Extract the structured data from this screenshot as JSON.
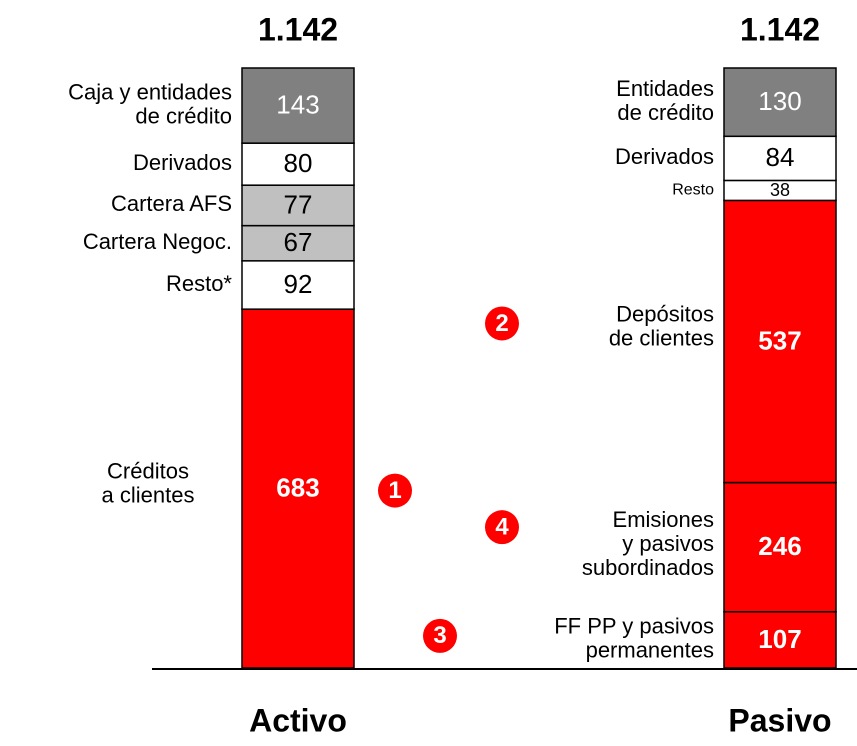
{
  "chart_data": {
    "type": "stacked_bar",
    "bars": [
      {
        "name": "Activo",
        "total": 1142,
        "total_label": "1.142",
        "segments": [
          {
            "label": [
              "Créditos",
              "a clientes"
            ],
            "value": 683,
            "color": "#ff0000",
            "marker": "1"
          },
          {
            "label": [
              "Resto*"
            ],
            "value": 92,
            "color": "#ffffff"
          },
          {
            "label": [
              "Cartera Negoc."
            ],
            "value": 67,
            "color": "#c0c0c0"
          },
          {
            "label": [
              "Cartera AFS"
            ],
            "value": 77,
            "color": "#c0c0c0"
          },
          {
            "label": [
              "Derivados"
            ],
            "value": 80,
            "color": "#ffffff"
          },
          {
            "label": [
              "Caja y entidades",
              "de crédito"
            ],
            "value": 143,
            "color": "#808080"
          }
        ]
      },
      {
        "name": "Pasivo",
        "total": 1142,
        "total_label": "1.142",
        "segments": [
          {
            "label": [
              "FF PP y pasivos",
              "permanentes"
            ],
            "value": 107,
            "color": "#ff0000",
            "marker": "3"
          },
          {
            "label": [
              "Emisiones",
              "y pasivos",
              "subordinados"
            ],
            "value": 246,
            "color": "#ff0000",
            "marker": "4"
          },
          {
            "label": [
              "Depósitos",
              "de clientes"
            ],
            "value": 537,
            "color": "#ff0000",
            "marker": "2"
          },
          {
            "label": [
              "Resto"
            ],
            "value": 38,
            "color": "#ffffff"
          },
          {
            "label": [
              "Derivados"
            ],
            "value": 84,
            "color": "#ffffff"
          },
          {
            "label": [
              "Entidades",
              "de crédito"
            ],
            "value": 130,
            "color": "#808080"
          }
        ]
      }
    ]
  }
}
